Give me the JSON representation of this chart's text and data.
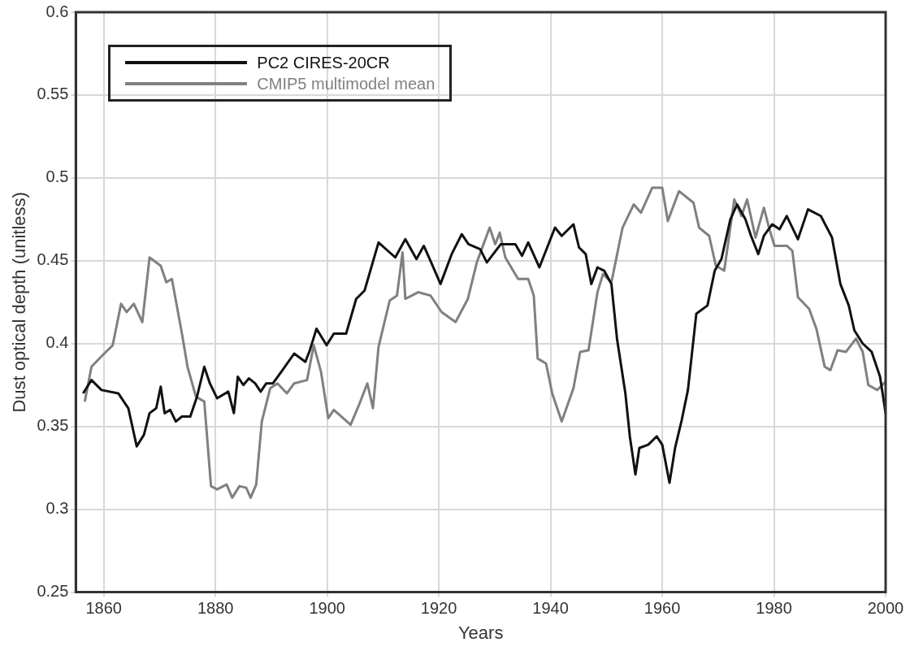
{
  "chart_data": {
    "type": "line",
    "xlabel": "Years",
    "ylabel": "Dust optical depth (unitless)",
    "xlim": [
      1855,
      2000
    ],
    "xticks": [
      1860,
      1880,
      1900,
      1920,
      1940,
      1960,
      1980,
      2000
    ],
    "ylim": [
      0.25,
      0.6
    ],
    "yticks": [
      0.25,
      0.3,
      0.35,
      0.4,
      0.45,
      0.5,
      0.55,
      0.6
    ],
    "grid": true,
    "legend": "top left",
    "marker": "none",
    "line_style": "solid",
    "series": [
      {
        "name": "PC2 CIRES-20CR",
        "color": "#111111",
        "x": [
          1856.3,
          1857.8,
          1859.6,
          1862.6,
          1864.4,
          1865.9,
          1867.2,
          1868.2,
          1869.4,
          1870.2,
          1870.9,
          1871.9,
          1872.9,
          1874.0,
          1875.5,
          1876.7,
          1878.0,
          1879.0,
          1880.3,
          1882.3,
          1883.3,
          1884.0,
          1885.0,
          1886.0,
          1887.1,
          1888.1,
          1889.1,
          1890.3,
          1891.8,
          1894.1,
          1896.1,
          1896.9,
          1898.1,
          1899.9,
          1901.2,
          1903.4,
          1905.2,
          1906.7,
          1909.2,
          1912.2,
          1914.0,
          1916.0,
          1917.3,
          1918.5,
          1920.3,
          1922.3,
          1924.1,
          1925.3,
          1927.4,
          1928.6,
          1931.1,
          1933.7,
          1934.9,
          1936.0,
          1938.0,
          1940.8,
          1942.0,
          1944.1,
          1945.1,
          1946.3,
          1947.3,
          1948.4,
          1949.6,
          1950.9,
          1951.9,
          1953.4,
          1954.2,
          1955.2,
          1955.9,
          1957.5,
          1959.0,
          1960.0,
          1961.3,
          1962.3,
          1963.5,
          1964.6,
          1966.1,
          1968.1,
          1969.4,
          1970.6,
          1972.2,
          1973.4,
          1974.9,
          1975.9,
          1977.2,
          1978.2,
          1979.7,
          1981.0,
          1982.3,
          1984.3,
          1986.1,
          1988.4,
          1990.4,
          1991.9,
          1993.4,
          1994.4,
          1995.9,
          1997.5,
          1999.0,
          2000.0
        ],
        "values": [
          0.37,
          0.378,
          0.372,
          0.37,
          0.361,
          0.338,
          0.345,
          0.358,
          0.361,
          0.374,
          0.358,
          0.36,
          0.353,
          0.356,
          0.356,
          0.368,
          0.386,
          0.376,
          0.367,
          0.371,
          0.358,
          0.38,
          0.375,
          0.379,
          0.376,
          0.371,
          0.376,
          0.376,
          0.383,
          0.394,
          0.389,
          0.396,
          0.409,
          0.399,
          0.406,
          0.406,
          0.427,
          0.432,
          0.461,
          0.452,
          0.463,
          0.451,
          0.459,
          0.45,
          0.436,
          0.454,
          0.466,
          0.46,
          0.457,
          0.449,
          0.46,
          0.46,
          0.453,
          0.461,
          0.446,
          0.47,
          0.465,
          0.472,
          0.458,
          0.454,
          0.436,
          0.446,
          0.444,
          0.436,
          0.403,
          0.37,
          0.344,
          0.321,
          0.337,
          0.339,
          0.344,
          0.339,
          0.316,
          0.337,
          0.354,
          0.372,
          0.418,
          0.423,
          0.444,
          0.451,
          0.475,
          0.484,
          0.475,
          0.465,
          0.454,
          0.465,
          0.472,
          0.469,
          0.477,
          0.463,
          0.481,
          0.477,
          0.464,
          0.436,
          0.423,
          0.408,
          0.4,
          0.395,
          0.38,
          0.358
        ]
      },
      {
        "name": "CMIP5 multimodel mean",
        "color": "#808080",
        "x": [
          1856.6,
          1857.8,
          1859.8,
          1861.6,
          1863.1,
          1864.1,
          1865.4,
          1866.9,
          1868.2,
          1870.2,
          1871.2,
          1872.2,
          1874.0,
          1875.0,
          1876.5,
          1878.0,
          1879.2,
          1880.3,
          1882.0,
          1883.0,
          1884.3,
          1885.5,
          1886.3,
          1887.3,
          1888.3,
          1889.8,
          1891.1,
          1892.8,
          1894.1,
          1896.4,
          1897.6,
          1898.9,
          1900.2,
          1901.2,
          1904.2,
          1905.7,
          1907.2,
          1908.2,
          1909.2,
          1911.2,
          1912.5,
          1913.5,
          1914.0,
          1916.3,
          1918.5,
          1920.5,
          1923.0,
          1925.2,
          1926.8,
          1929.1,
          1930.1,
          1930.9,
          1931.9,
          1934.2,
          1936.0,
          1937.0,
          1937.7,
          1939.2,
          1940.3,
          1942.0,
          1944.1,
          1945.3,
          1946.8,
          1948.4,
          1949.4,
          1950.9,
          1952.9,
          1954.9,
          1956.2,
          1958.2,
          1960.0,
          1961.0,
          1963.0,
          1965.6,
          1966.6,
          1968.4,
          1969.6,
          1971.1,
          1972.9,
          1974.2,
          1975.2,
          1976.7,
          1978.2,
          1979.2,
          1980.1,
          1982.3,
          1983.3,
          1984.3,
          1986.3,
          1987.6,
          1989.1,
          1990.1,
          1991.4,
          1992.9,
          1994.7,
          1995.9,
          1996.9,
          1998.5,
          2000.0
        ],
        "values": [
          0.365,
          0.386,
          0.393,
          0.399,
          0.424,
          0.419,
          0.424,
          0.413,
          0.452,
          0.447,
          0.437,
          0.439,
          0.406,
          0.386,
          0.368,
          0.365,
          0.314,
          0.312,
          0.315,
          0.307,
          0.314,
          0.313,
          0.307,
          0.315,
          0.353,
          0.373,
          0.376,
          0.37,
          0.376,
          0.378,
          0.399,
          0.383,
          0.355,
          0.36,
          0.351,
          0.363,
          0.376,
          0.361,
          0.398,
          0.426,
          0.429,
          0.455,
          0.427,
          0.431,
          0.429,
          0.419,
          0.413,
          0.427,
          0.449,
          0.47,
          0.46,
          0.467,
          0.452,
          0.439,
          0.439,
          0.429,
          0.391,
          0.388,
          0.37,
          0.353,
          0.373,
          0.395,
          0.396,
          0.431,
          0.442,
          0.437,
          0.47,
          0.484,
          0.479,
          0.494,
          0.494,
          0.474,
          0.492,
          0.485,
          0.47,
          0.465,
          0.447,
          0.444,
          0.487,
          0.477,
          0.487,
          0.464,
          0.482,
          0.469,
          0.459,
          0.459,
          0.456,
          0.428,
          0.421,
          0.409,
          0.386,
          0.384,
          0.396,
          0.395,
          0.403,
          0.395,
          0.375,
          0.372,
          0.377
        ]
      }
    ]
  }
}
